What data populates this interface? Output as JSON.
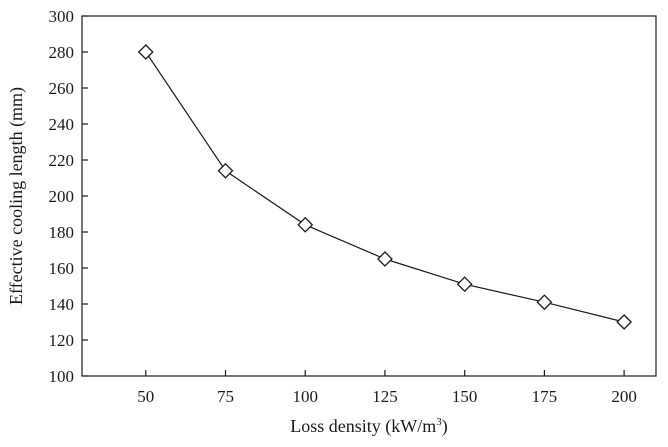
{
  "chart_data": {
    "type": "line",
    "title": "",
    "xlabel": "Loss density (kW/m",
    "xlabel_sup": "3",
    "xlabel_suffix": ")",
    "ylabel": "Effective cooling length (mm)",
    "x_ticks": [
      50,
      75,
      100,
      125,
      150,
      175,
      200
    ],
    "x_tick_labels": [
      "50",
      "75",
      "100",
      "125",
      "150",
      "175",
      "200"
    ],
    "y_ticks": [
      100,
      120,
      140,
      160,
      180,
      200,
      220,
      240,
      260,
      280,
      300
    ],
    "y_tick_labels": [
      "100",
      "120",
      "140",
      "160",
      "180",
      "200",
      "220",
      "240",
      "260",
      "280",
      "300"
    ],
    "xlim": [
      30,
      210
    ],
    "ylim": [
      100,
      300
    ],
    "grid": false,
    "legend": "none",
    "marker": "open-diamond",
    "colors": {
      "line": "#1a1a1a",
      "marker_fill": "#ffffff"
    },
    "series": [
      {
        "name": "Effective cooling length",
        "x": [
          50,
          75,
          100,
          125,
          150,
          175,
          200
        ],
        "y": [
          280,
          214,
          184,
          165,
          151,
          141,
          130
        ]
      }
    ]
  }
}
